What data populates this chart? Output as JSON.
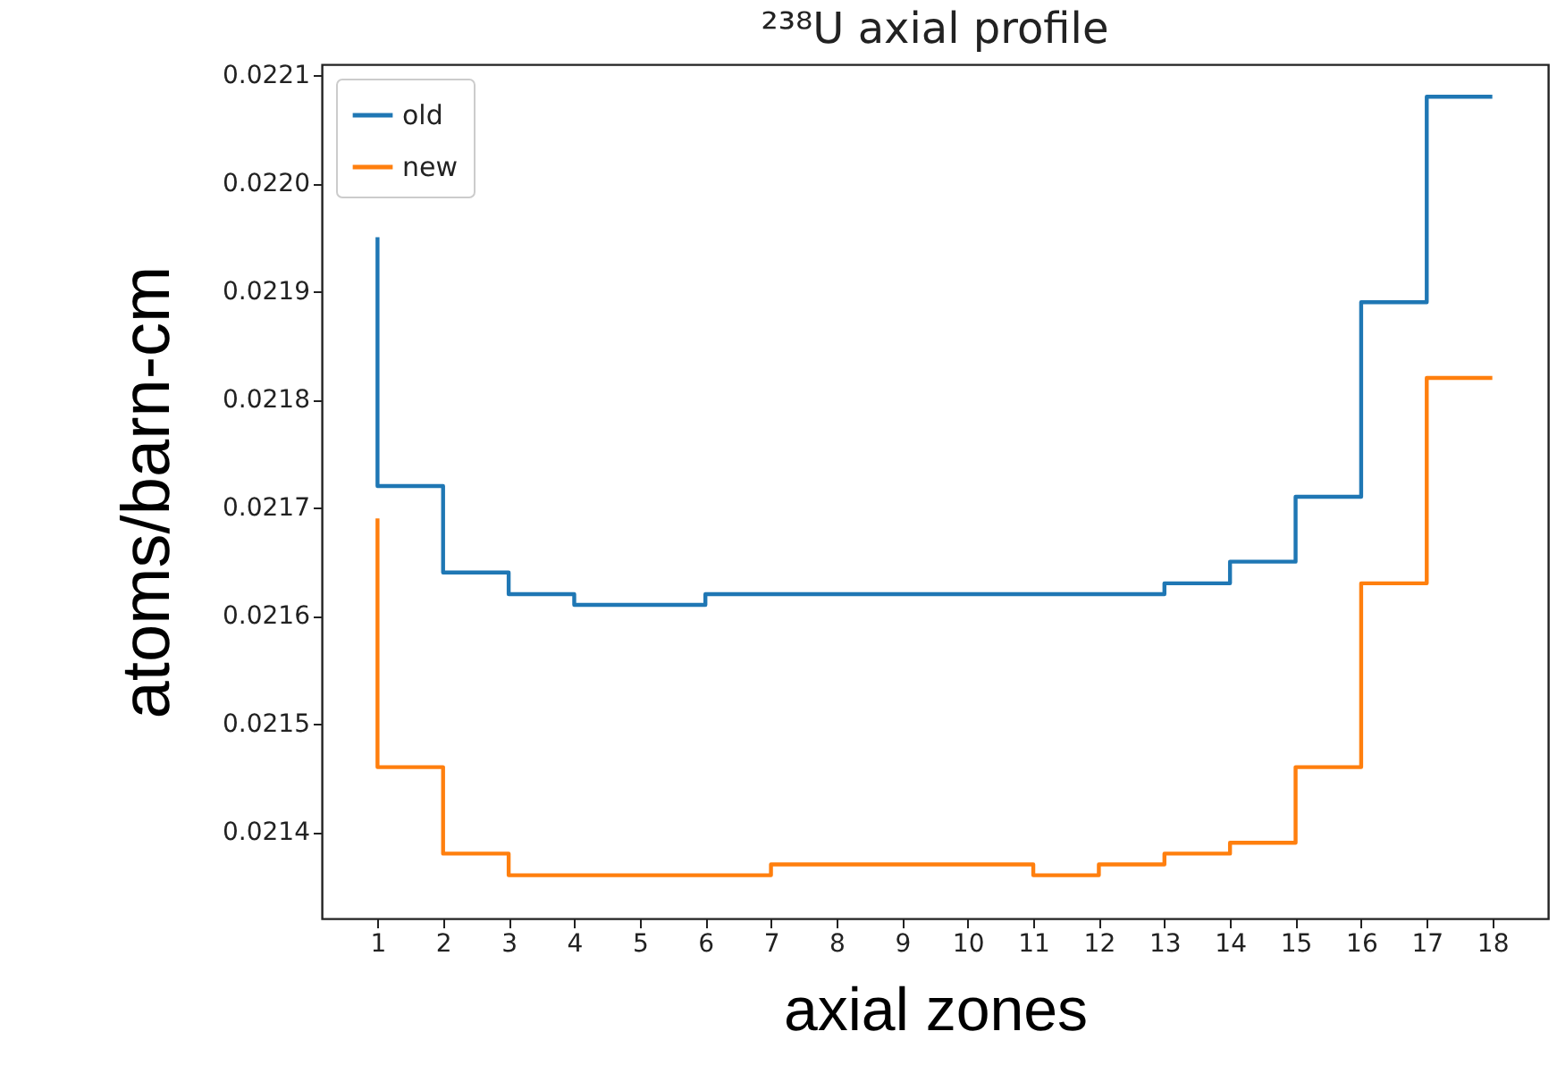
{
  "chart_data": {
    "type": "step",
    "title": "²³⁸U axial profile",
    "xlabel": "axial zones",
    "ylabel": "atoms/barn-cm",
    "x": [
      1,
      2,
      3,
      4,
      5,
      6,
      7,
      8,
      9,
      10,
      11,
      12,
      13,
      14,
      15,
      16,
      17,
      18
    ],
    "series": [
      {
        "name": "old",
        "color": "#1f77b4",
        "values": [
          0.02195,
          0.02172,
          0.02164,
          0.02162,
          0.02161,
          0.02161,
          0.02162,
          0.02162,
          0.02162,
          0.02162,
          0.02162,
          0.02162,
          0.02162,
          0.02163,
          0.02165,
          0.02171,
          0.02189,
          0.02208
        ]
      },
      {
        "name": "new",
        "color": "#ff7f0e",
        "values": [
          0.02169,
          0.02146,
          0.02138,
          0.02136,
          0.02136,
          0.02136,
          0.02136,
          0.02137,
          0.02137,
          0.02137,
          0.02137,
          0.02136,
          0.02137,
          0.02138,
          0.02139,
          0.02146,
          0.02163,
          0.02182
        ]
      }
    ],
    "xlim": [
      0.15,
      18.85
    ],
    "xticks": [
      1,
      2,
      3,
      4,
      5,
      6,
      7,
      8,
      9,
      10,
      11,
      12,
      13,
      14,
      15,
      16,
      17,
      18
    ],
    "ylim": [
      0.02132,
      0.02211
    ],
    "yticks": [
      0.0214,
      0.0215,
      0.0216,
      0.0217,
      0.0218,
      0.0219,
      {
        "value": 0.022,
        "label": "0.0220"
      },
      0.0221
    ],
    "grid": false,
    "legend": "top left",
    "marker": "none",
    "line_style": "solid"
  }
}
